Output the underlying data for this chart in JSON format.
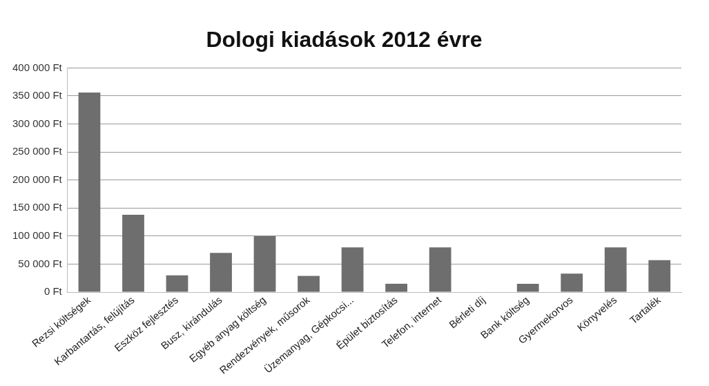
{
  "chart_data": {
    "type": "bar",
    "title": "Dologi kiadások 2012 évre",
    "categories": [
      "Rezsi költségek",
      "Karbantartás, felújítás",
      "Eszköz fejlesztés",
      "Busz, kirándulás",
      "Egyéb anyag költség",
      "Rendezvények, műsorok",
      "Üzemanyag, Gépkocsi...",
      "Épület biztosítás",
      "Telefon, internet",
      "Bérleti díj",
      "Bank költség",
      "Gyermekorvos",
      "Könyvelés",
      "Tartalék"
    ],
    "values": [
      356000,
      138000,
      30000,
      70000,
      100000,
      29000,
      80000,
      15000,
      80000,
      0,
      15000,
      33000,
      80000,
      57000
    ],
    "color": "#6e6e6e",
    "ylim": [
      0,
      400000
    ],
    "yticks": [
      {
        "value": 0,
        "label": "0 Ft"
      },
      {
        "value": 50000,
        "label": "50 000 Ft"
      },
      {
        "value": 100000,
        "label": "100 000 Ft"
      },
      {
        "value": 150000,
        "label": "150 000 Ft"
      },
      {
        "value": 200000,
        "label": "200 000 Ft"
      },
      {
        "value": 250000,
        "label": "250 000 Ft"
      },
      {
        "value": 300000,
        "label": "300 000 Ft"
      },
      {
        "value": 350000,
        "label": "350 000 Ft"
      },
      {
        "value": 400000,
        "label": "400 000 Ft"
      }
    ],
    "grid": "y"
  }
}
